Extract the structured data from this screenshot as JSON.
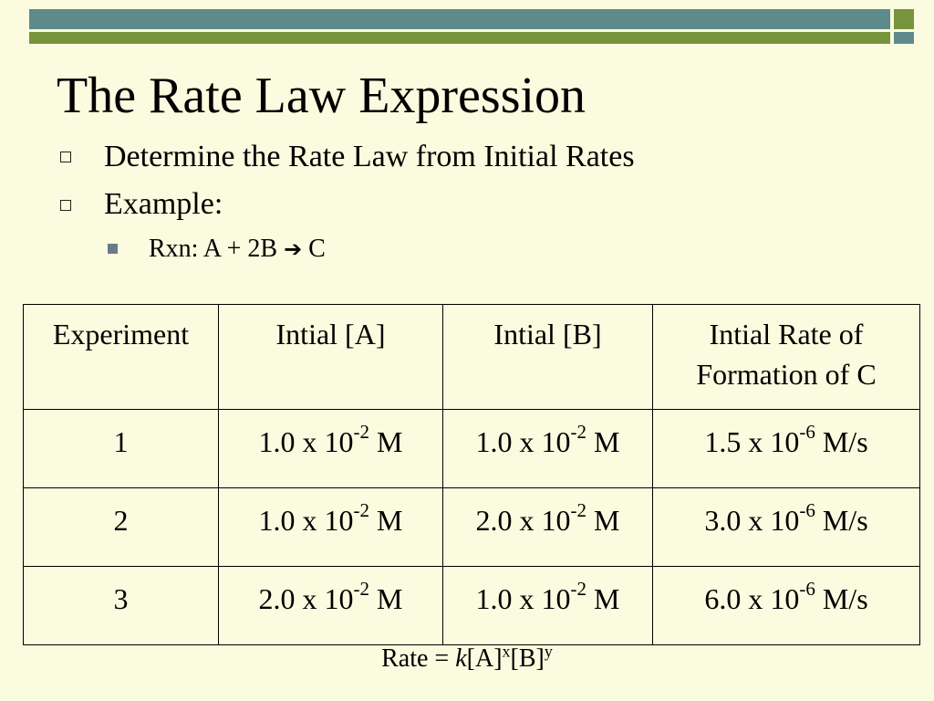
{
  "slide": {
    "title": "The Rate Law Expression",
    "bullets": [
      "Determine the Rate Law from Initial Rates",
      "Example:"
    ],
    "sub_bullet": {
      "label": "Rxn:  A + 2B",
      "arrow": "➔",
      "product": "C"
    }
  },
  "table": {
    "headers": [
      "Experiment",
      "Intial [A]",
      "Intial [B]",
      "Intial Rate of Formation of C"
    ],
    "rows": [
      {
        "exp": "1",
        "a": {
          "coef": "1.0 x 10",
          "exp": "-2",
          "unit": " M"
        },
        "b": {
          "coef": "1.0 x 10",
          "exp": "-2",
          "unit": " M"
        },
        "rate": {
          "coef": "1.5 x 10",
          "exp": "-6",
          "unit": " M/s"
        }
      },
      {
        "exp": "2",
        "a": {
          "coef": "1.0 x 10",
          "exp": "-2",
          "unit": " M"
        },
        "b": {
          "coef": "2.0 x 10",
          "exp": "-2",
          "unit": " M"
        },
        "rate": {
          "coef": "3.0 x 10",
          "exp": "-6",
          "unit": " M/s"
        }
      },
      {
        "exp": "3",
        "a": {
          "coef": "2.0 x 10",
          "exp": "-2",
          "unit": " M"
        },
        "b": {
          "coef": "1.0 x 10",
          "exp": "-2",
          "unit": " M"
        },
        "rate": {
          "coef": "6.0 x 10",
          "exp": "-6",
          "unit": " M/s"
        }
      }
    ]
  },
  "rate_law": {
    "prefix": "Rate = ",
    "k": "k",
    "a": "[A]",
    "x": "x",
    "b": "[B]",
    "y": "y"
  },
  "colors": {
    "background": "#fbfbdf",
    "teal_bar": "#5e8a8c",
    "green_bar": "#77933c"
  }
}
